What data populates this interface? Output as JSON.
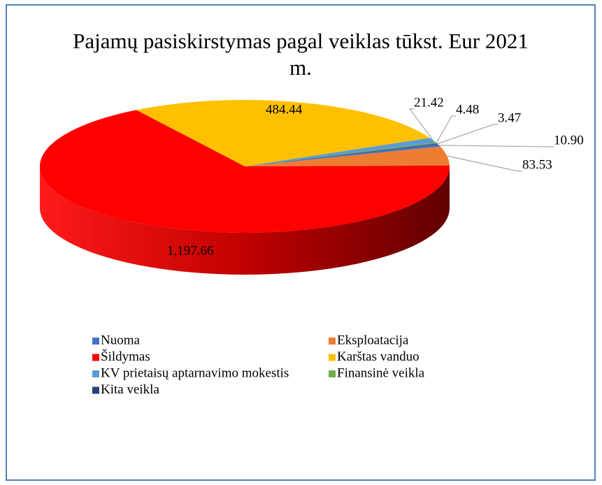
{
  "chart_data": {
    "type": "pie3d",
    "title": "Pajamų pasiskirstymas pagal veiklas tūkst. Eur 2021 m.",
    "categories": [
      "Nuoma",
      "Eksploatacija",
      "Šildymas",
      "Karštas vanduo",
      "KV prietaisų aptarnavimo mokestis",
      "Finansinė veikla",
      "Kita veikla"
    ],
    "values": [
      10.9,
      83.53,
      1197.66,
      484.44,
      21.42,
      4.48,
      3.47
    ],
    "value_labels": [
      "10.90",
      "83.53",
      "1,197.66",
      "484.44",
      "21.42",
      "4.48",
      "3.47"
    ],
    "colors": [
      "#4472c4",
      "#ed7d31",
      "#ff0000",
      "#ffc000",
      "#5b9bd5",
      "#70ad47",
      "#264478"
    ],
    "legend": "bottom"
  }
}
